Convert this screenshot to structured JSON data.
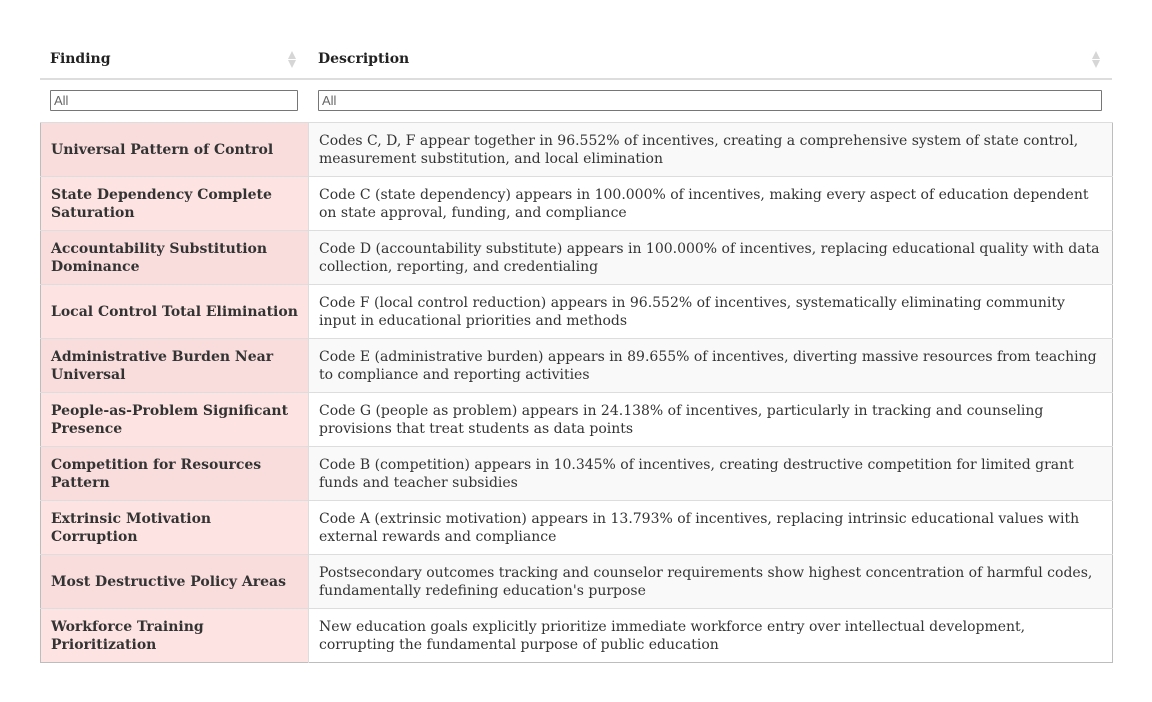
{
  "table": {
    "columns": [
      {
        "label": "Finding"
      },
      {
        "label": "Description"
      }
    ],
    "filters": {
      "finding_placeholder": "All",
      "description_placeholder": "All"
    },
    "rows": [
      {
        "finding": "Universal Pattern of Control",
        "description": "Codes C, D, F appear together in 96.552% of incentives, creating a comprehensive system of state control, measurement substitution, and local elimination"
      },
      {
        "finding": "State Dependency Complete Saturation",
        "description": "Code C (state dependency) appears in 100.000% of incentives, making every aspect of education dependent on state approval, funding, and compliance"
      },
      {
        "finding": "Accountability Substitution Dominance",
        "description": "Code D (accountability substitute) appears in 100.000% of incentives, replacing educational quality with data collection, reporting, and credentialing"
      },
      {
        "finding": "Local Control Total Elimination",
        "description": "Code F (local control reduction) appears in 96.552% of incentives, systematically eliminating community input in educational priorities and methods"
      },
      {
        "finding": "Administrative Burden Near Universal",
        "description": "Code E (administrative burden) appears in 89.655% of incentives, diverting massive resources from teaching to compliance and reporting activities"
      },
      {
        "finding": "People-as-Problem Significant Presence",
        "description": "Code G (people as problem) appears in 24.138% of incentives, particularly in tracking and counseling provisions that treat students as data points"
      },
      {
        "finding": "Competition for Resources Pattern",
        "description": "Code B (competition) appears in 10.345% of incentives, creating destructive competition for limited grant funds and teacher subsidies"
      },
      {
        "finding": "Extrinsic Motivation Corruption",
        "description": "Code A (extrinsic motivation) appears in 13.793% of incentives, replacing intrinsic educational values with external rewards and compliance"
      },
      {
        "finding": "Most Destructive Policy Areas",
        "description": "Postsecondary outcomes tracking and counselor requirements show highest concentration of harmful codes, fundamentally redefining education's purpose"
      },
      {
        "finding": "Workforce Training Prioritization",
        "description": "New education goals explicitly prioritize immediate workforce entry over intellectual development, corrupting the fundamental purpose of public education"
      }
    ]
  },
  "colors": {
    "finding_cell_bg": "#f9dcdc",
    "border": "#dddddd"
  }
}
